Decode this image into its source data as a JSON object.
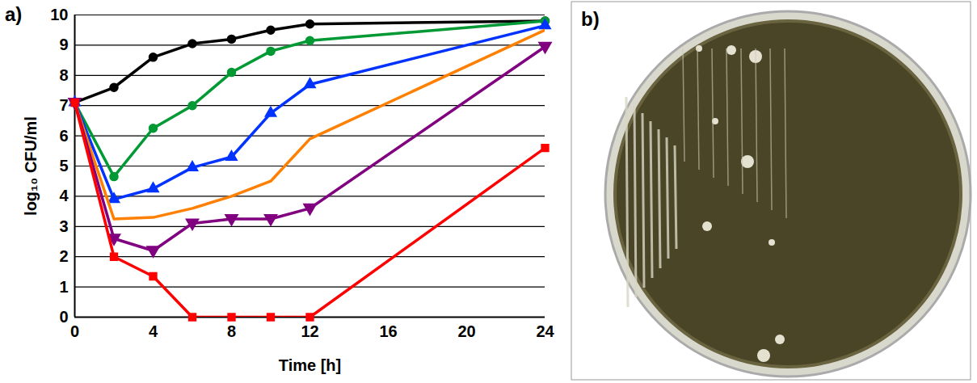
{
  "chart_data": {
    "type": "line",
    "panel_label": "a)",
    "x_label": "Time [h]",
    "y_label": "log₁₀ CFU/ml",
    "x": [
      0,
      2,
      4,
      6,
      8,
      10,
      12,
      24
    ],
    "series": [
      {
        "color": "#000000",
        "marker": "circle",
        "values": [
          7.1,
          7.6,
          8.6,
          9.05,
          9.2,
          9.5,
          9.7,
          9.8
        ]
      },
      {
        "color": "#009933",
        "marker": "circle",
        "values": [
          7.1,
          4.65,
          6.25,
          7.0,
          8.1,
          8.8,
          9.15,
          9.8
        ]
      },
      {
        "color": "#0033ff",
        "marker": "triangle",
        "values": [
          7.1,
          3.9,
          4.25,
          4.95,
          5.3,
          6.75,
          7.7,
          9.65
        ]
      },
      {
        "color": "#ff8000",
        "marker": "none",
        "values": [
          7.1,
          3.25,
          3.3,
          3.6,
          4.0,
          4.5,
          5.9,
          9.5
        ]
      },
      {
        "color": "#800080",
        "marker": "triangle-down",
        "values": [
          7.1,
          2.6,
          2.2,
          3.1,
          3.25,
          3.25,
          3.6,
          8.95
        ]
      },
      {
        "color": "#ff0000",
        "marker": "square",
        "values": [
          7.1,
          2.0,
          1.35,
          0,
          0,
          0,
          0,
          5.6
        ]
      }
    ],
    "xlim": [
      0,
      24
    ],
    "xticks": [
      0,
      4,
      8,
      12,
      16,
      20,
      24
    ],
    "ylim": [
      0,
      10
    ],
    "yticks": [
      0,
      1,
      2,
      3,
      4,
      5,
      6,
      7,
      8,
      9,
      10
    ],
    "grid": "y"
  },
  "image_panel": {
    "label": "b)"
  }
}
